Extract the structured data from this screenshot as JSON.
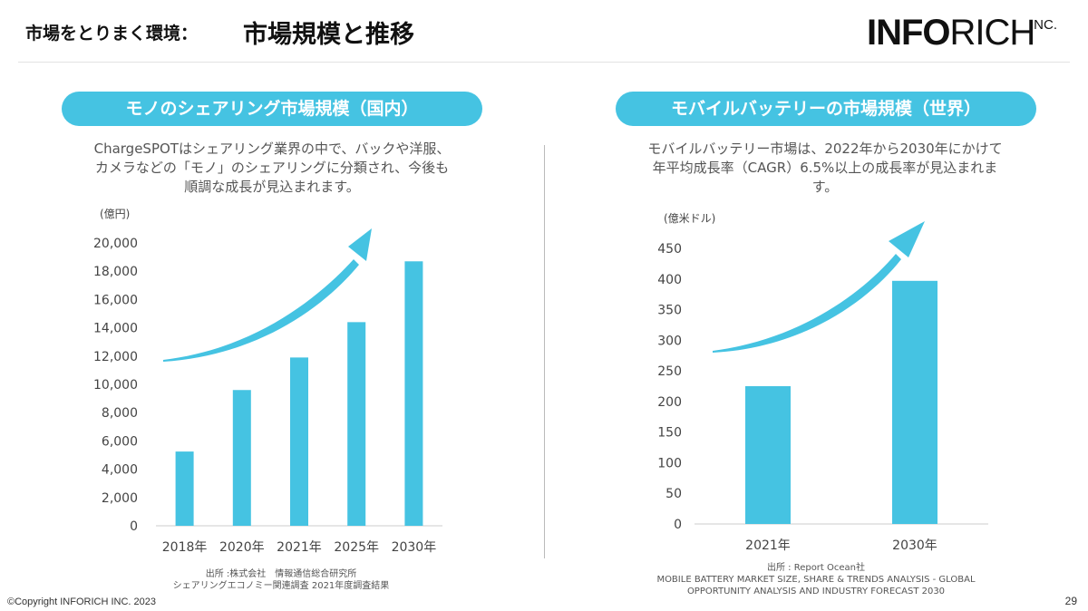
{
  "header": {
    "label": "市場をとりまく環境：",
    "title": "市場規模と推移",
    "logo_bold": "INFO",
    "logo_regular": "RICH",
    "logo_suffix": "INC."
  },
  "left_panel": {
    "pill": "モノのシェアリング市場規模（国内）",
    "desc_lines": [
      "ChargeSPOTはシェアリング業界の中で、バックや洋服、",
      "カメラなどの「モノ」のシェアリングに分類され、今後も",
      "順調な成長が見込まれます。"
    ],
    "source_lines": [
      "出所 :株式会社　情報通信総合研究所",
      "シェアリングエコノミー関連調査 2021年度調査結果"
    ]
  },
  "right_panel": {
    "pill": "モバイルバッテリーの市場規模（世界）",
    "desc_lines": [
      "モバイルバッテリー市場は、2022年から2030年にかけて",
      "年平均成長率（CAGR）6.5%以上の成長率が見込まれま",
      "す。"
    ],
    "source_lines": [
      "出所 : Report Ocean社",
      "MOBILE BATTERY MARKET SIZE, SHARE & TRENDS ANALYSIS - GLOBAL",
      "OPPORTUNITY ANALYSIS AND INDUSTRY FORECAST 2030"
    ]
  },
  "chart_data": [
    {
      "type": "bar",
      "unit_label": "(億円)",
      "categories": [
        "2018年",
        "2020年",
        "2021年",
        "2025年",
        "2030年"
      ],
      "values": [
        5250,
        9600,
        11900,
        14400,
        18700
      ],
      "ylim": [
        0,
        20000
      ],
      "yticks": [
        "0",
        "2,000",
        "4,000",
        "6,000",
        "8,000",
        "10,000",
        "12,000",
        "14,000",
        "16,000",
        "18,000",
        "20,000"
      ],
      "grid": false,
      "color": "#45c3e2",
      "trend_arrow": true
    },
    {
      "type": "bar",
      "unit_label": "(億米ドル)",
      "categories": [
        "2021年",
        "2030年"
      ],
      "values": [
        225,
        397
      ],
      "ylim": [
        0,
        450
      ],
      "yticks": [
        "0",
        "50",
        "100",
        "150",
        "200",
        "250",
        "300",
        "350",
        "400",
        "450"
      ],
      "grid": false,
      "color": "#45c3e2",
      "trend_arrow": true
    }
  ],
  "footer": {
    "copyright": "©Copyright INFORICH INC. 2023",
    "page_number": "29"
  }
}
